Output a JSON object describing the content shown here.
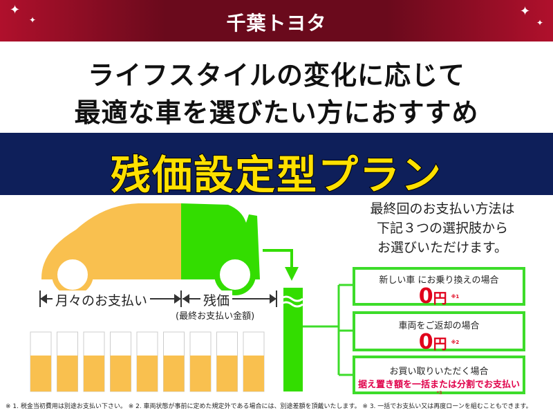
{
  "header": {
    "logo": "千葉トヨタ"
  },
  "lead": {
    "line1": "ライフスタイルの変化に応じて",
    "line2": "最適な車を選びたい方におすすめ"
  },
  "plan_title": "残価設定型プラン",
  "diagram": {
    "monthly_label": "月々のお支払い",
    "residual_label": "残価",
    "residual_sub": "(最終お支払い金額)",
    "colors": {
      "monthly": "#f9c04f",
      "residual": "#33dd00",
      "box_border": "#3ddc2a",
      "accent_red": "#e0001b"
    }
  },
  "info": {
    "line1": "最終回のお支払い方法は",
    "line2": "下記３つの選択肢から",
    "line3": "お選びいただけます。"
  },
  "options": [
    {
      "title": "新しい車 にお乗り換えの場合",
      "amount": "0",
      "unit": "円",
      "note": "※1"
    },
    {
      "title": "車両をご返却の場合",
      "amount": "0",
      "unit": "円",
      "note": "※2"
    },
    {
      "title": "お買い取りいただく場合",
      "detail": "据え置き額を一括または分割でお支払い",
      "note": "*3"
    }
  ],
  "footnote": "※ 1. 税金当初費用は別途お支払い下さい。 ※ 2. 車両状態が事前に定めた規定外である場合には、別途差額を頂戴いたします。 ※ 3. 一括でお支払い又は再度ローンを組むこともできます。"
}
